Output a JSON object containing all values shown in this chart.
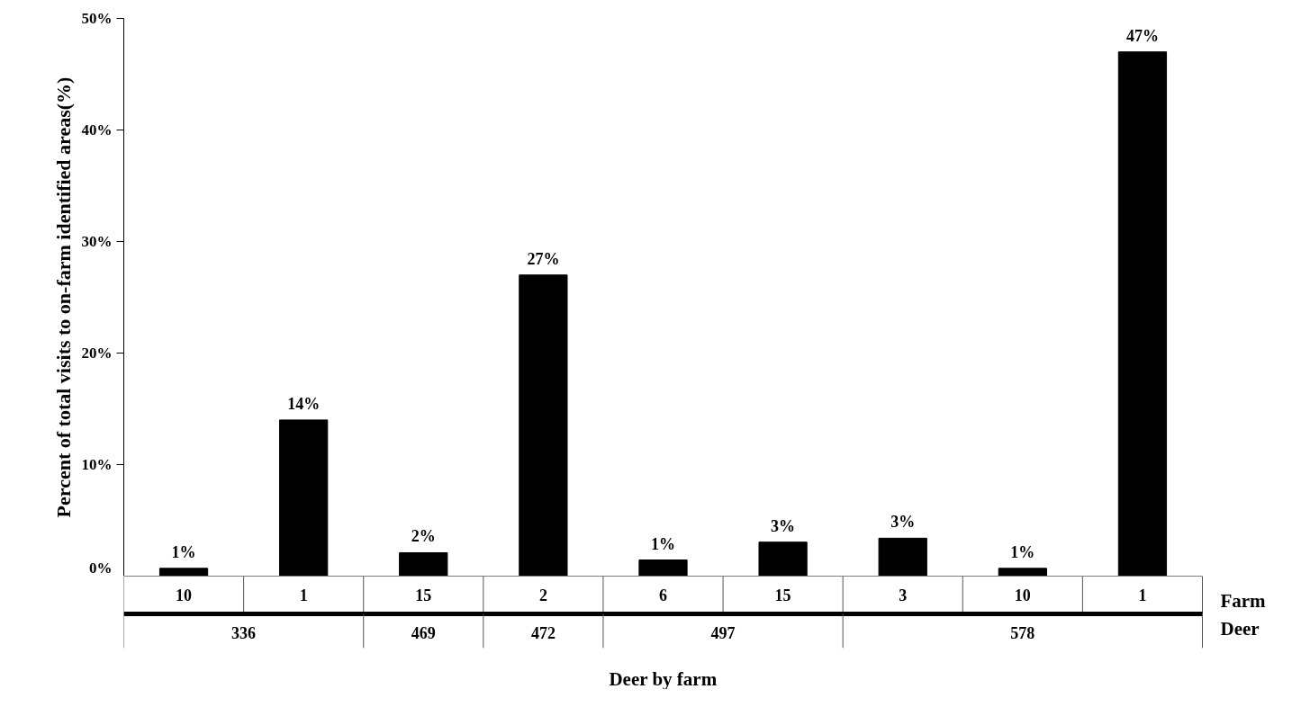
{
  "chart_data": {
    "type": "bar",
    "xlabel": "Deer by farm",
    "ylabel": "Percent of total visits to on-farm identified areas(%)",
    "categories": [
      "10",
      "1",
      "15",
      "2",
      "6",
      "15",
      "3",
      "10",
      "1"
    ],
    "values": [
      0.7,
      14.0,
      2.1,
      27.0,
      1.45,
      3.05,
      3.4,
      0.7,
      47.0
    ],
    "value_labels": [
      "1%",
      "14%",
      "2%",
      "27%",
      "1%",
      "3%",
      "3%",
      "1%",
      "47%"
    ],
    "color": "#000000",
    "ylim": [
      0,
      50
    ],
    "yticks": [
      {
        "value": 0,
        "label": "0%"
      },
      {
        "value": 10,
        "label": "10%"
      },
      {
        "value": 20,
        "label": "20%"
      },
      {
        "value": 30,
        "label": "30%"
      },
      {
        "value": 40,
        "label": "40%"
      },
      {
        "value": 50,
        "label": "50%"
      }
    ],
    "annotations": [
      "Farm",
      "Deer",
      "336",
      "469",
      "472",
      "497",
      "578"
    ],
    "grid": false
  }
}
